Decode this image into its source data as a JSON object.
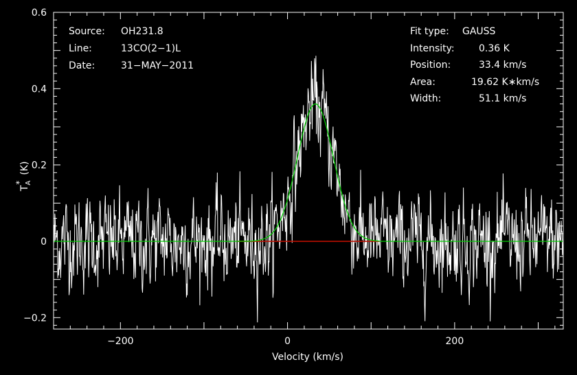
{
  "annotations_left": {
    "source_label": "Source:",
    "source_value": "OH231.8",
    "line_label": "Line:",
    "line_value": "13CO(2−1)L",
    "date_label": "Date:",
    "date_value": "31−MAY−2011"
  },
  "annotations_right": {
    "fit_label": "Fit type:",
    "fit_value": "GAUSS",
    "intensity_label": "Intensity:",
    "intensity_value": "0.36 K",
    "position_label": "Position:",
    "position_value": "33.4 km/s",
    "area_label": "Area:",
    "area_value": "19.62 K∗km/s",
    "width_label": "Width:",
    "width_value": "51.1 km/s"
  },
  "chart_data": {
    "type": "line",
    "xlabel": "Velocity (km/s)",
    "ylabel_main": "T",
    "ylabel_sub": "A",
    "ylabel_sup": "*",
    "ylabel_unit": "(K)",
    "xlim": [
      -280,
      330
    ],
    "ylim": [
      -0.23,
      0.6
    ],
    "xticks": [
      -200,
      0,
      200
    ],
    "xtick_labels": [
      "−200",
      "0",
      "200"
    ],
    "yticks": [
      -0.2,
      0,
      0.2,
      0.4,
      0.6
    ],
    "ytick_labels": [
      "−0.2",
      "0",
      "0.2",
      "0.4",
      "0.6"
    ],
    "baseline": {
      "value": 0,
      "color": "#00cc00"
    },
    "fit_window": {
      "x": [
        -60,
        110
      ],
      "color": "#cc0000"
    },
    "gaussian_fit": {
      "amplitude": 0.36,
      "center": 33.4,
      "fwhm": 51.1,
      "color": "#00cc00"
    },
    "spectrum": {
      "color": "#ffffff",
      "step": 0.5,
      "noise_sigma": 0.06,
      "x_range": [
        -280,
        330
      ]
    },
    "colors": {
      "background": "#000000",
      "axes": "#ffffff",
      "text": "#ffffff"
    }
  }
}
